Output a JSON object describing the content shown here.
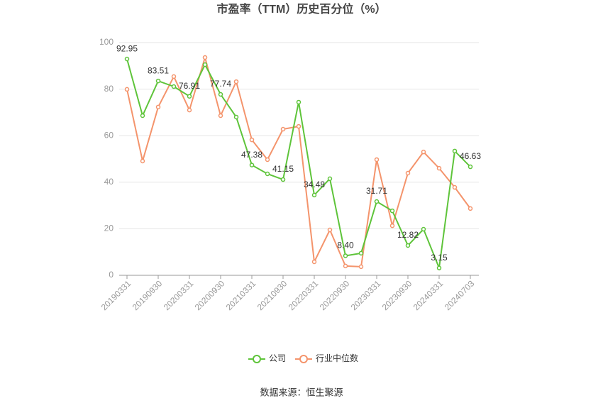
{
  "chart_data": {
    "type": "line",
    "title": "市盈率（TTM）历史百分位（%）",
    "source": "数据来源：恒生聚源",
    "categories": [
      "20190331",
      null,
      "20190930",
      null,
      "20200331",
      null,
      "20200930",
      null,
      "20210331",
      null,
      "20210930",
      null,
      "20220331",
      null,
      "20220930",
      null,
      "20230331",
      null,
      "20230930",
      null,
      "20240331",
      null,
      "20240703"
    ],
    "series": [
      {
        "name": "公司",
        "color": "#5ec43a",
        "values": [
          92.95,
          68.6,
          83.51,
          81.1,
          76.91,
          90.5,
          77.74,
          68.0,
          47.38,
          43.6,
          41.15,
          74.4,
          34.48,
          41.5,
          8.4,
          9.5,
          31.71,
          27.7,
          12.82,
          19.8,
          3.15,
          53.4,
          46.63
        ],
        "value_labels": [
          "92.95",
          null,
          "83.51",
          null,
          "76.91",
          null,
          "77.74",
          null,
          "47.38",
          null,
          "41.15",
          null,
          "34.48",
          null,
          "8.40",
          null,
          "31.71",
          null,
          "12.82",
          null,
          "3.15",
          null,
          "46.63"
        ]
      },
      {
        "name": "行业中位数",
        "color": "#f4946c",
        "values": [
          79.9,
          49.1,
          72.3,
          85.4,
          71.0,
          93.6,
          68.6,
          83.2,
          58.2,
          49.7,
          62.8,
          64.0,
          5.8,
          19.5,
          4.0,
          3.7,
          49.7,
          21.3,
          43.9,
          53.0,
          46.0,
          37.8,
          28.7
        ]
      }
    ],
    "ylim": [
      0,
      100
    ],
    "yticks": [
      0,
      20,
      40,
      60,
      80,
      100
    ],
    "grid": true,
    "legend": "bottom"
  }
}
